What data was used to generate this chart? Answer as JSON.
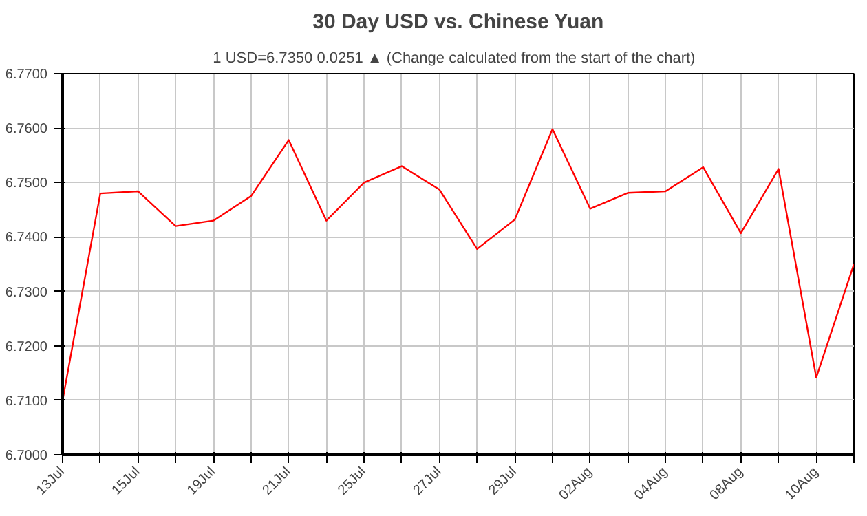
{
  "chart_data": {
    "type": "line",
    "title": "30 Day USD vs. Chinese Yuan",
    "subtitle": "1 USD=6.7350  0.0251 ▲  (Change calculated from the start of the chart)",
    "categories": [
      "13Jul",
      null,
      "15Jul",
      null,
      "19Jul",
      null,
      "21Jul",
      null,
      "25Jul",
      null,
      "27Jul",
      null,
      "29Jul",
      null,
      "02Aug",
      null,
      "04Aug",
      null,
      "08Aug",
      null,
      "10Aug",
      null
    ],
    "series": [
      {
        "color": "#ff0000",
        "values": [
          6.71,
          6.748,
          6.7484,
          6.742,
          6.743,
          6.7475,
          6.7578,
          6.743,
          6.75,
          6.753,
          6.7487,
          6.7378,
          6.7432,
          6.7598,
          6.7452,
          6.7481,
          6.7484,
          6.7528,
          6.7407,
          6.7525,
          6.7142,
          6.735
        ]
      }
    ],
    "ylim": [
      6.7,
      6.77
    ],
    "yticks": [
      {
        "value": 6.7,
        "label": "6.7000"
      },
      {
        "value": 6.71,
        "label": "6.7100"
      },
      {
        "value": 6.72,
        "label": "6.7200"
      },
      {
        "value": 6.73,
        "label": "6.7300"
      },
      {
        "value": 6.74,
        "label": "6.7400"
      },
      {
        "value": 6.75,
        "label": "6.7500"
      },
      {
        "value": 6.76,
        "label": "6.7600"
      },
      {
        "value": 6.77,
        "label": "6.7700"
      }
    ],
    "grid": true,
    "marker": "none",
    "line_style": "solid"
  }
}
